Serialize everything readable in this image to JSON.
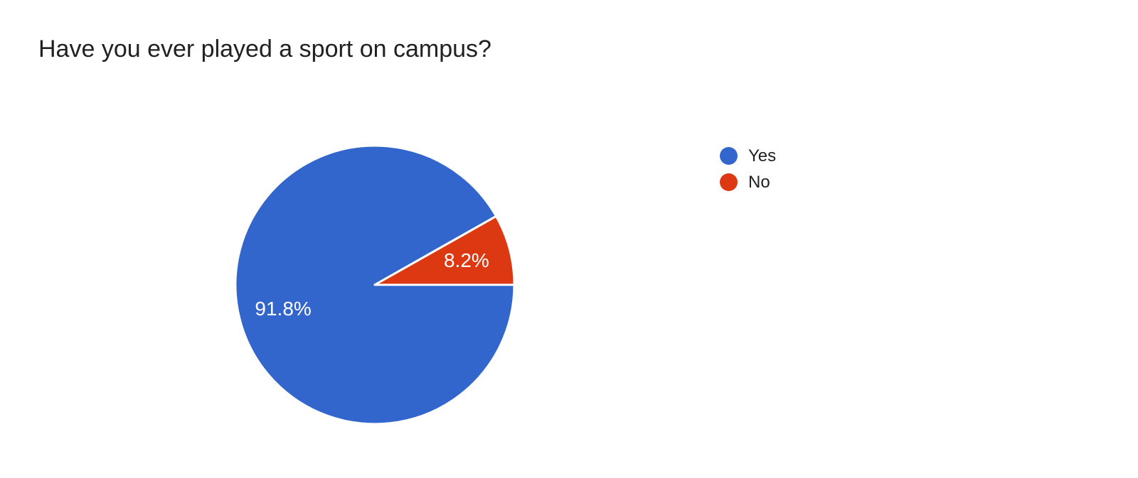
{
  "page": {
    "background_color": "#ffffff"
  },
  "chart_data": {
    "type": "pie",
    "title": "Have you ever played a sport on campus?",
    "categories": [
      "Yes",
      "No"
    ],
    "values": [
      91.8,
      8.2
    ],
    "slices": [
      {
        "label": "Yes",
        "value": 91.8,
        "percent_label": "91.8%",
        "color": "#3366cc"
      },
      {
        "label": "No",
        "value": 8.2,
        "percent_label": "8.2%",
        "color": "#dc3912"
      }
    ],
    "unit": "percent",
    "start_angle": "3-oclock",
    "direction": "clockwise",
    "slice_label_color": "#ffffff",
    "slice_border_color": "#ffffff",
    "legend_position": "right",
    "background": "#ffffff"
  }
}
